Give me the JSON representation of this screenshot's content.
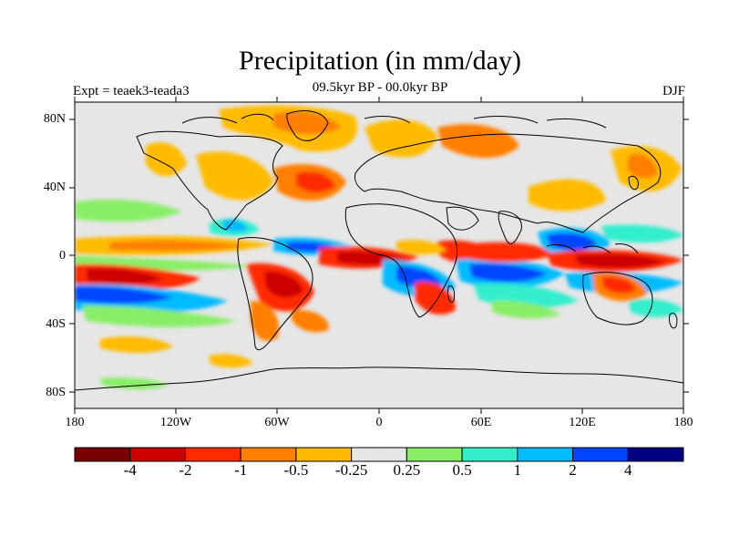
{
  "title": "Precipitation (in mm/day)",
  "subtitle": "09.5kyr BP - 00.0kyr BP",
  "experiment": "Expt = teaek3-teada3",
  "season": "DJF",
  "lat_labels": [
    "80N",
    "40N",
    "0",
    "40S",
    "80S"
  ],
  "lon_labels": [
    "180",
    "120W",
    "60W",
    "0",
    "60E",
    "120E",
    "180"
  ],
  "colorbar": {
    "labels": [
      "-4",
      "-2",
      "-1",
      "-0.5",
      "-0.25",
      "0.25",
      "0.5",
      "1",
      "2",
      "4"
    ],
    "colors": [
      "#7a0000",
      "#cc0000",
      "#ff2a00",
      "#ff7f00",
      "#ffbb00",
      "#e6e6e6",
      "#88ee66",
      "#33eecc",
      "#00bbff",
      "#0044ff",
      "#000080"
    ]
  }
}
